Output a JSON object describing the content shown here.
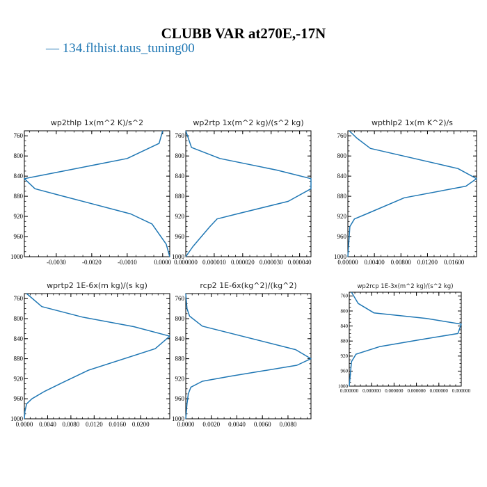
{
  "figure": {
    "title": "CLUBB VAR at270E,-17N",
    "legend": {
      "marker": "—",
      "label": "134.flthist.taus_tuning00",
      "color": "#1f77b4"
    }
  },
  "chart_data": [
    {
      "type": "line",
      "title": "wp2thlp   1x(m^2 K)/s^2",
      "xlim": [
        -0.0039,
        0.0002
      ],
      "ylim": [
        1000,
        750
      ],
      "y_ticks": [
        760,
        800,
        840,
        880,
        920,
        960,
        1000
      ],
      "x_ticks": [
        -0.003,
        -0.002,
        -0.001,
        0.0
      ],
      "x_tick_labels": [
        "-0.0030",
        "-0.0020",
        "-0.0010",
        "0.0000"
      ],
      "series": [
        {
          "color": "#1f77b4",
          "x": [
            0.0,
            -0.0001,
            -0.001,
            -0.0028,
            -0.0039,
            -0.0036,
            -0.0028,
            -0.0009,
            -0.0003,
            -0.0001,
            0.0001,
            0.0002
          ],
          "y": [
            750,
            775,
            805,
            830,
            845,
            865,
            880,
            915,
            935,
            955,
            975,
            1000
          ]
        }
      ]
    },
    {
      "type": "line",
      "title": "wp2rtp   1x(m^2 kg)/(s^2 kg)",
      "xlim": [
        0.0,
        4.4e-05
      ],
      "ylim": [
        1000,
        750
      ],
      "y_ticks": [
        760,
        800,
        840,
        880,
        920,
        960,
        1000
      ],
      "x_ticks": [
        0.0,
        1e-05,
        2e-05,
        3e-05,
        4e-05
      ],
      "x_tick_labels": [
        "0.000000",
        "0.000010",
        "0.000020",
        "0.000030",
        "0.000040"
      ],
      "series": [
        {
          "color": "#1f77b4",
          "x": [
            0.0,
            2e-06,
            1.2e-05,
            3.2e-05,
            4.4e-05,
            4.4e-05,
            3.6e-05,
            1.8e-05,
            1.1e-05,
            8.5e-06,
            5.5e-06,
            2.5e-06,
            0.0
          ],
          "y": [
            750,
            783,
            805,
            828,
            845,
            865,
            890,
            915,
            925,
            940,
            960,
            980,
            1000
          ]
        }
      ]
    },
    {
      "type": "line",
      "title": "wpthlp2   1x(m K^2)/s",
      "xlim": [
        0.0,
        0.0194
      ],
      "ylim": [
        1000,
        750
      ],
      "y_ticks": [
        760,
        800,
        840,
        880,
        920,
        960,
        1000
      ],
      "x_ticks": [
        0.0,
        0.004,
        0.008,
        0.012,
        0.016
      ],
      "x_tick_labels": [
        "0.00000",
        "0.00400",
        "0.00800",
        "0.01200",
        "0.01600"
      ],
      "series": [
        {
          "color": "#1f77b4",
          "x": [
            0.0002,
            0.0014,
            0.0034,
            0.0166,
            0.0194,
            0.0178,
            0.0085,
            0.0028,
            0.001,
            0.0003,
            0.0
          ],
          "y": [
            750,
            765,
            785,
            825,
            845,
            860,
            883,
            915,
            925,
            940,
            1000
          ]
        }
      ]
    },
    {
      "type": "line",
      "title": "wprtp2   1E-6x(m kg)/(s kg)",
      "xlim": [
        0.0,
        0.025
      ],
      "ylim": [
        1000,
        750
      ],
      "y_ticks": [
        760,
        800,
        840,
        880,
        920,
        960,
        1000
      ],
      "x_ticks": [
        0.0,
        0.004,
        0.008,
        0.012,
        0.016,
        0.02
      ],
      "x_tick_labels": [
        "0.0000",
        "0.0040",
        "0.0080",
        "0.0120",
        "0.0160",
        "0.0200"
      ],
      "series": [
        {
          "color": "#1f77b4",
          "x": [
            0.0004,
            0.003,
            0.01,
            0.0188,
            0.025,
            0.0225,
            0.011,
            0.0065,
            0.0035,
            0.0013,
            0.0004,
            0.0001,
            0.0
          ],
          "y": [
            750,
            776,
            797,
            816,
            835,
            860,
            903,
            928,
            945,
            960,
            970,
            985,
            1000
          ]
        }
      ]
    },
    {
      "type": "line",
      "title": "rcp2   1E-6x(kg^2)/(kg^2)",
      "xlim": [
        0.0,
        0.0098
      ],
      "ylim": [
        1000,
        750
      ],
      "y_ticks": [
        760,
        800,
        840,
        880,
        920,
        960,
        1000
      ],
      "x_ticks": [
        0.0,
        0.002,
        0.004,
        0.006,
        0.008
      ],
      "x_tick_labels": [
        "0.0000",
        "0.0020",
        "0.0040",
        "0.0060",
        "0.0080"
      ],
      "series": [
        {
          "color": "#1f77b4",
          "x": [
            0.0,
            0.0001,
            0.0003,
            0.0013,
            0.0086,
            0.0098,
            0.0087,
            0.0035,
            0.0013,
            0.0004,
            0.0002,
            0.0001,
            0.0
          ],
          "y": [
            750,
            780,
            795,
            815,
            862,
            880,
            893,
            915,
            925,
            937,
            950,
            970,
            1000
          ]
        }
      ]
    },
    {
      "type": "line",
      "title": "wp2rcp   1E-3x(m^2 kg)/(s^2 kg)",
      "xlim": [
        0.0,
        1.0
      ],
      "ylim": [
        1000,
        750
      ],
      "y_ticks": [
        760,
        800,
        840,
        880,
        920,
        960,
        1000
      ],
      "x_ticks": [
        0.0,
        0.2,
        0.4,
        0.6,
        0.8,
        1.0
      ],
      "x_tick_labels": [
        "0.000000",
        "0.000000",
        "0.000000",
        "0.000000",
        "0.000000",
        "0.000000"
      ],
      "series": [
        {
          "color": "#1f77b4",
          "x": [
            0.02,
            0.08,
            0.22,
            0.69,
            1.0,
            0.97,
            0.62,
            0.27,
            0.06,
            0.02,
            0.0
          ],
          "y": [
            750,
            780,
            805,
            820,
            835,
            860,
            877,
            895,
            915,
            935,
            1000
          ]
        }
      ]
    }
  ]
}
